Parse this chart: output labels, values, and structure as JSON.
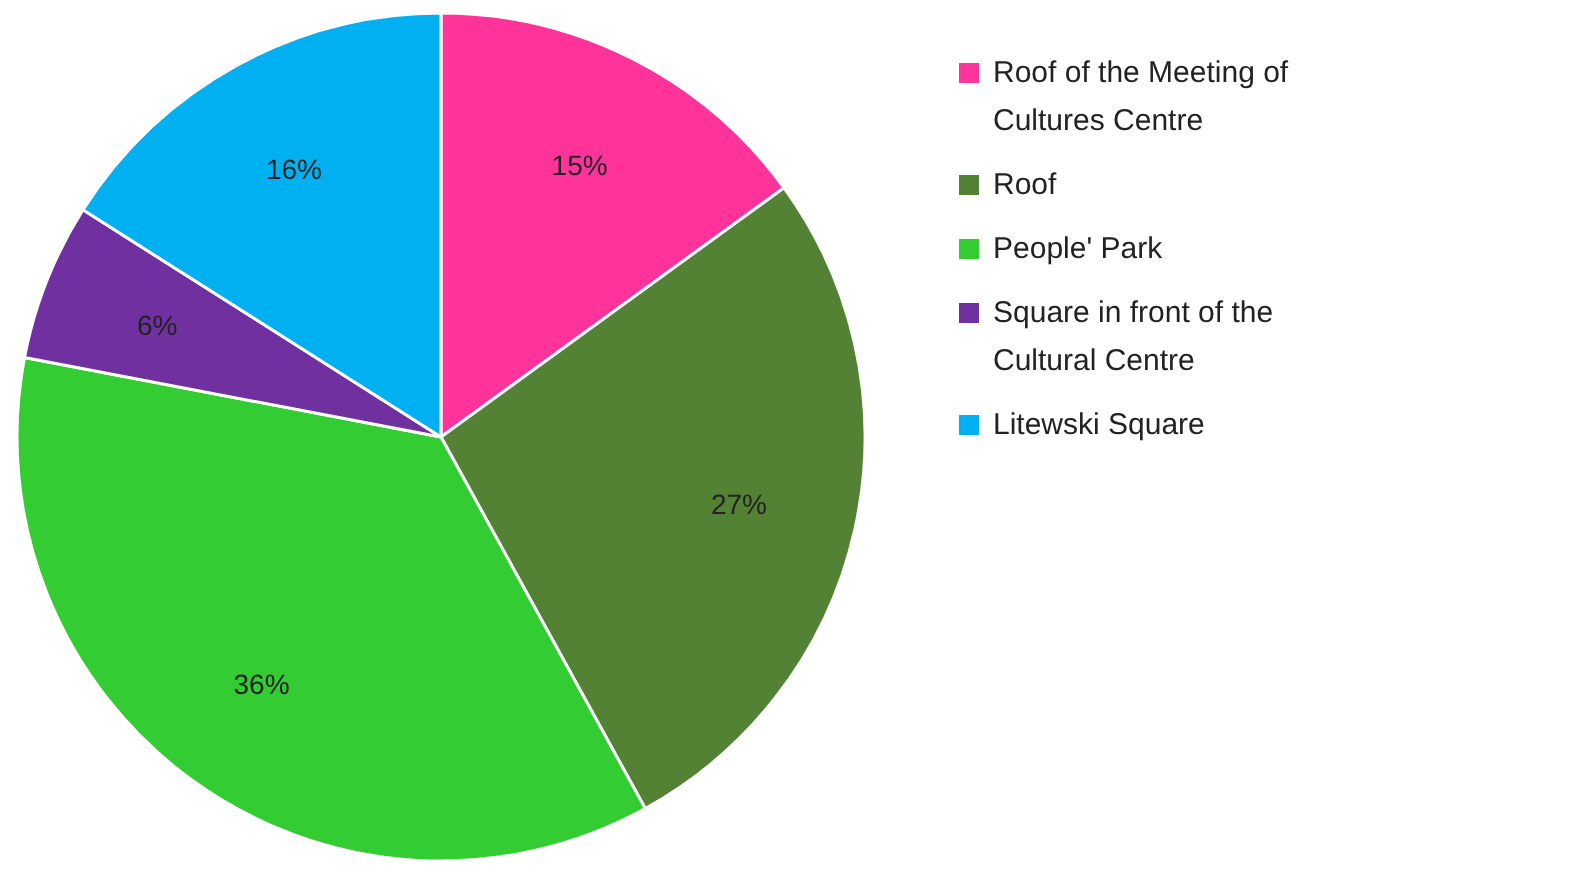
{
  "chart_data": {
    "type": "pie",
    "categories": [
      "Roof of the Meeting of Cultures Centre",
      "Roof",
      "People' Park",
      "Square in front of the Cultural Centre",
      "Litewski Square"
    ],
    "values": [
      15,
      27,
      36,
      6,
      16
    ],
    "value_labels": [
      "15%",
      "27%",
      "36%",
      "6%",
      "16%"
    ],
    "colors": [
      "#ff3399",
      "#548235",
      "#33cc33",
      "#7030a0",
      "#00b0f0"
    ],
    "legend": "right"
  }
}
